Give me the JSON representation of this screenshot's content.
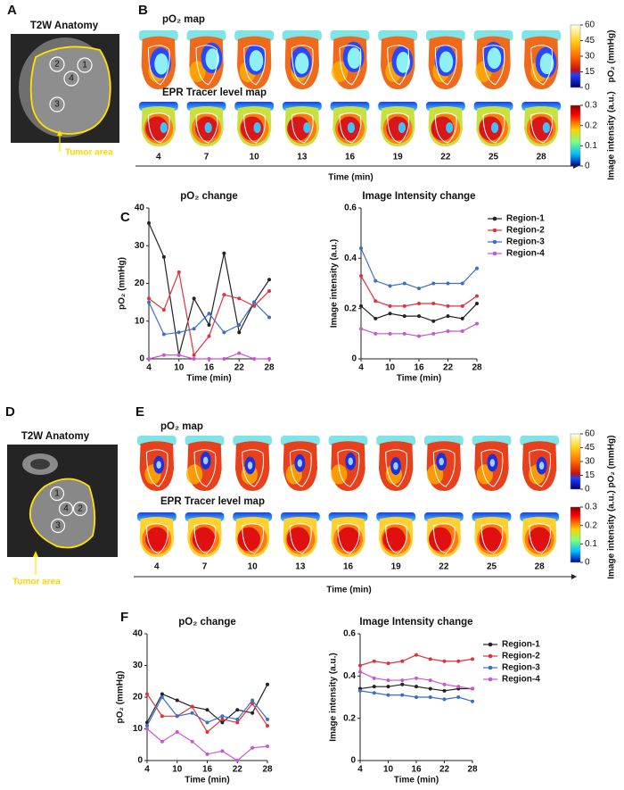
{
  "labels": [
    "A",
    "B",
    "C",
    "D",
    "E",
    "F"
  ],
  "anatomy": [
    {
      "title": "T2W Anatomy",
      "regions": [
        "1",
        "2",
        "3",
        "4"
      ],
      "annotation": "Tumor area"
    },
    {
      "title": "T2W Anatomy",
      "regions": [
        "1",
        "2",
        "3",
        "4"
      ],
      "annotation": "Tumor area"
    }
  ],
  "maps": [
    {
      "rows": [
        {
          "title": "pO₂ map",
          "colorbar": {
            "label": "pO₂ (mmHg)",
            "lim": [
              0,
              60
            ],
            "ticks": [
              0,
              15,
              30,
              45,
              60
            ]
          }
        },
        {
          "title": "EPR Tracer level map",
          "colorbar": {
            "label": "Image intensity (a.u.)",
            "lim": [
              0,
              0.3
            ],
            "ticks": [
              0,
              0.1,
              0.2,
              0.3
            ]
          }
        }
      ],
      "times": [
        4,
        7,
        10,
        13,
        16,
        19,
        22,
        25,
        28
      ],
      "xlabel": "Time (min)"
    },
    {
      "rows": [
        {
          "title": "pO₂ map",
          "colorbar": {
            "label": "pO₂ (mmHg)",
            "lim": [
              0,
              60
            ],
            "ticks": [
              0,
              15,
              30,
              45,
              60
            ]
          }
        },
        {
          "title": "EPR Tracer level map",
          "colorbar": {
            "label": "Image intensity (a.u.)",
            "lim": [
              0,
              0.3
            ],
            "ticks": [
              0,
              0.1,
              0.2,
              0.3
            ]
          }
        }
      ],
      "times": [
        4,
        7,
        10,
        13,
        16,
        19,
        22,
        25,
        28
      ],
      "xlabel": "Time (min)"
    }
  ],
  "chart_data": [
    {
      "type": "line",
      "title": "pO₂ change",
      "xlabel": "Time (min)",
      "ylabel": "pO₂ (mmHg)",
      "x": [
        4,
        7,
        10,
        13,
        16,
        19,
        22,
        25,
        28
      ],
      "xlim": [
        4,
        28
      ],
      "xticks": [
        4,
        10,
        16,
        22,
        28
      ],
      "ylim": [
        0,
        40
      ],
      "yticks": [
        0,
        10,
        20,
        30,
        40
      ],
      "series": [
        {
          "color": "#222222",
          "values": [
            36,
            27,
            1,
            16,
            9,
            28,
            7,
            15,
            21
          ]
        },
        {
          "color": "#e0323c",
          "values": [
            16,
            13,
            23,
            1,
            6,
            17,
            16,
            14,
            18
          ]
        },
        {
          "color": "#3a6fc4",
          "values": [
            15,
            6.5,
            7,
            8,
            12,
            7,
            9,
            15,
            11
          ]
        },
        {
          "color": "#cc55d4",
          "values": [
            0,
            1,
            1,
            0,
            0,
            0,
            1.5,
            0,
            0
          ]
        }
      ]
    },
    {
      "type": "line",
      "title": "Image Intensity change",
      "xlabel": "Time (min)",
      "ylabel": "Image  intensity (a.u.)",
      "x": [
        4,
        7,
        10,
        13,
        16,
        19,
        22,
        25,
        28
      ],
      "xlim": [
        4,
        28
      ],
      "xticks": [
        4,
        10,
        16,
        22,
        28
      ],
      "ylim": [
        0,
        0.6
      ],
      "yticks": [
        0,
        0.2,
        0.4,
        0.6
      ],
      "legend": "upper right",
      "series": [
        {
          "name": "Region-1",
          "color": "#222222",
          "values": [
            0.21,
            0.16,
            0.18,
            0.17,
            0.17,
            0.15,
            0.17,
            0.16,
            0.22
          ]
        },
        {
          "name": "Region-2",
          "color": "#e0323c",
          "values": [
            0.33,
            0.23,
            0.21,
            0.21,
            0.22,
            0.22,
            0.21,
            0.21,
            0.25
          ]
        },
        {
          "name": "Region-3",
          "color": "#3a6fc4",
          "values": [
            0.44,
            0.31,
            0.29,
            0.3,
            0.28,
            0.3,
            0.3,
            0.3,
            0.36
          ]
        },
        {
          "name": "Region-4",
          "color": "#cc55d4",
          "values": [
            0.12,
            0.1,
            0.1,
            0.1,
            0.09,
            0.1,
            0.11,
            0.11,
            0.14
          ]
        }
      ]
    },
    {
      "type": "line",
      "title": "pO₂ change",
      "xlabel": "Time (min)",
      "ylabel": "pO₂ (mmHg)",
      "x": [
        4,
        7,
        10,
        13,
        16,
        19,
        22,
        25,
        28
      ],
      "xlim": [
        4,
        28
      ],
      "xticks": [
        4,
        10,
        16,
        22,
        28
      ],
      "ylim": [
        0,
        40
      ],
      "yticks": [
        0,
        10,
        20,
        30,
        40
      ],
      "series": [
        {
          "color": "#222222",
          "values": [
            12,
            21,
            19,
            17,
            16,
            12,
            16,
            15,
            24
          ]
        },
        {
          "color": "#e0323c",
          "values": [
            21,
            14,
            14,
            17,
            9,
            13,
            12,
            18,
            11
          ]
        },
        {
          "color": "#3a6fc4",
          "values": [
            11,
            20,
            14,
            15,
            12,
            14,
            13,
            19,
            13
          ]
        },
        {
          "color": "#cc55d4",
          "values": [
            10,
            6,
            9,
            6,
            2,
            3,
            0,
            4,
            4.5
          ]
        }
      ]
    },
    {
      "type": "line",
      "title": "Image Intensity change",
      "xlabel": "Time (min)",
      "ylabel": "Image intensity (a.u.)",
      "x": [
        4,
        7,
        10,
        13,
        16,
        19,
        22,
        25,
        28
      ],
      "xlim": [
        4,
        28
      ],
      "xticks": [
        4,
        10,
        16,
        22,
        28
      ],
      "ylim": [
        0,
        0.6
      ],
      "yticks": [
        0,
        0.2,
        0.4,
        0.6
      ],
      "legend": "upper right",
      "series": [
        {
          "name": "Region-1",
          "color": "#222222",
          "values": [
            0.34,
            0.35,
            0.35,
            0.36,
            0.35,
            0.34,
            0.33,
            0.34,
            0.34
          ]
        },
        {
          "name": "Region-2",
          "color": "#e0323c",
          "values": [
            0.45,
            0.47,
            0.46,
            0.47,
            0.5,
            0.48,
            0.47,
            0.47,
            0.48
          ]
        },
        {
          "name": "Region-3",
          "color": "#3a6fc4",
          "values": [
            0.33,
            0.32,
            0.31,
            0.31,
            0.3,
            0.3,
            0.29,
            0.3,
            0.28
          ]
        },
        {
          "name": "Region-4",
          "color": "#cc55d4",
          "values": [
            0.42,
            0.39,
            0.38,
            0.38,
            0.39,
            0.38,
            0.36,
            0.35,
            0.34
          ]
        }
      ]
    }
  ]
}
